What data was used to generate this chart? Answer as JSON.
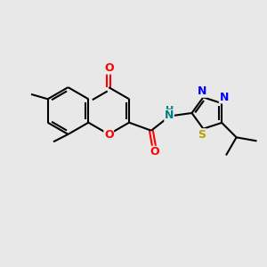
{
  "bg": "#e8e8e8",
  "bond_color": "#000000",
  "O_color": "#ff0000",
  "N_color": "#0000ff",
  "S_color": "#b8a000",
  "NH_color": "#008080",
  "figsize": [
    3.0,
    3.0
  ],
  "dpi": 100,
  "xlim": [
    0,
    10
  ],
  "ylim": [
    0,
    10
  ]
}
